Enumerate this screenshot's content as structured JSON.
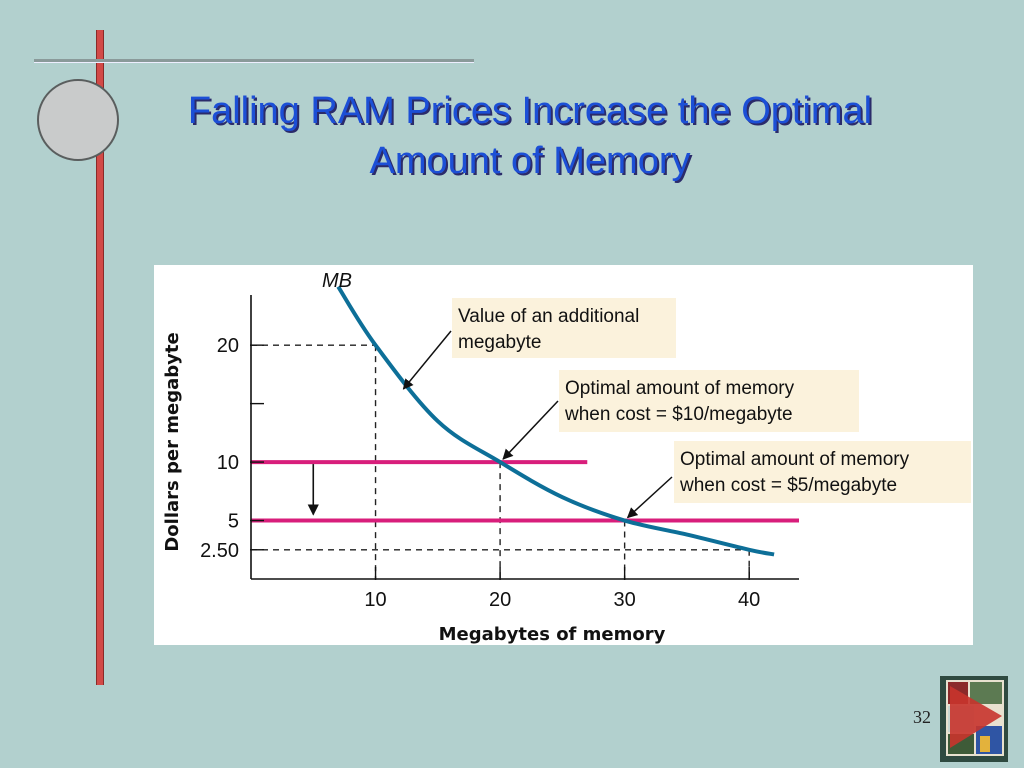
{
  "slide": {
    "title_line1": "Falling RAM Prices Increase the Optimal",
    "title_line2": "Amount of Memory",
    "page_number": "32"
  },
  "colors": {
    "background": "#b2d0ce",
    "title": "#1c4fd6",
    "curve": "#0d6f98",
    "price_line": "#d81e7b",
    "callout_bg": "#fbf2dc"
  },
  "chart_data": {
    "type": "line",
    "title": "",
    "xlabel": "Megabytes of memory",
    "ylabel": "Dollars per megabyte",
    "xlim": [
      0,
      44
    ],
    "ylim": [
      0,
      26
    ],
    "x_ticks": [
      10,
      20,
      30,
      40
    ],
    "x_tick_labels": [
      "10",
      "20",
      "30",
      "40"
    ],
    "y_ticks": [
      2.5,
      5,
      10,
      15,
      20
    ],
    "y_tick_labels": [
      "2.50",
      "5",
      "10",
      "",
      "20"
    ],
    "curve": {
      "name": "MB",
      "x": [
        7,
        10,
        15,
        20,
        25,
        30,
        35,
        40,
        42
      ],
      "y": [
        25,
        20,
        13.5,
        10,
        7,
        5,
        3.8,
        2.5,
        2.1
      ]
    },
    "price_lines": [
      {
        "price": 10,
        "x_end": 27
      },
      {
        "price": 5,
        "x_end": 44
      }
    ],
    "guides": [
      {
        "x": 10,
        "y": 20
      },
      {
        "x": 20,
        "y": 10
      },
      {
        "x": 30,
        "y": 5
      },
      {
        "x": 40,
        "y": 2.5
      }
    ],
    "shift_arrow": {
      "x": 5,
      "from": 10,
      "to": 5
    },
    "annotations": [
      {
        "line1": "Value of an additional",
        "line2": "megabyte",
        "target": {
          "x": 12,
          "y": 16
        }
      },
      {
        "line1": "Optimal amount of memory",
        "line2": "when cost = $10/megabyte",
        "target": {
          "x": 20,
          "y": 10
        }
      },
      {
        "line1": "Optimal amount of memory",
        "line2": "when cost = $5/megabyte",
        "target": {
          "x": 30,
          "y": 5
        }
      }
    ],
    "grid": false
  }
}
